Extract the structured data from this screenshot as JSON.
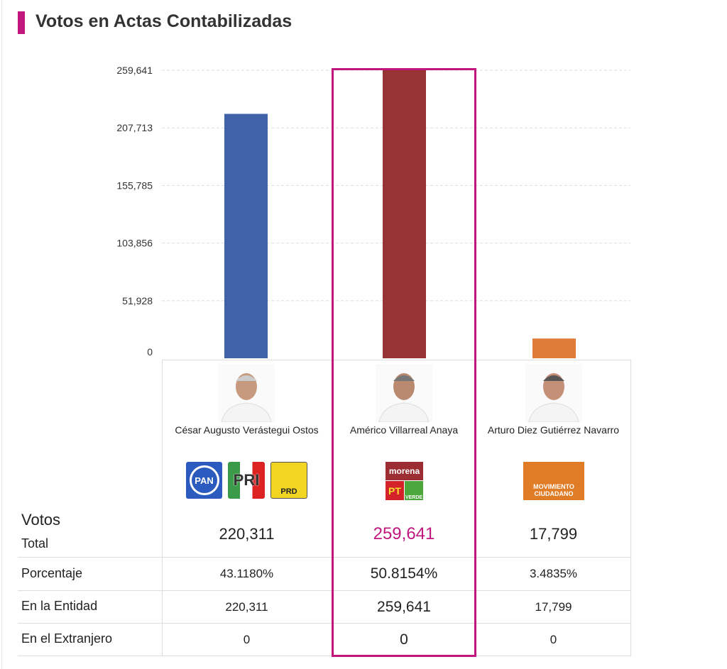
{
  "title": "Votos en Actas Contabilizadas",
  "colors": {
    "accent": "#c0167e",
    "highlight_text": "#c0167e"
  },
  "chart_data": {
    "type": "bar",
    "categories": [
      "César Augusto Verástegui Ostos",
      "Américo Villarreal Anaya",
      "Arturo Diez Gutiérrez Navarro"
    ],
    "values": [
      220311,
      259641,
      17799
    ],
    "bar_colors": [
      "#3f62a9",
      "#973235",
      "#e07b39"
    ],
    "ylim": [
      0,
      259641
    ],
    "yticks": [
      "0",
      "51,928",
      "103,856",
      "155,785",
      "207,713",
      "259,641"
    ],
    "ytick_values": [
      0,
      51928,
      103856,
      155785,
      207713,
      259641
    ],
    "grid": true,
    "highlighted": "Américo Villarreal Anaya"
  },
  "table": {
    "votos_label": "Votos",
    "total_label": "Total",
    "row_labels": [
      "Porcentaje",
      "En la Entidad",
      "En el Extranjero"
    ],
    "candidates": [
      {
        "name": "César Augusto Verástegui Ostos",
        "parties": [
          "PAN",
          "PRI",
          "PRD"
        ],
        "total": "220,311",
        "porcentaje": "43.1180%",
        "entidad": "220,311",
        "extranjero": "0"
      },
      {
        "name": "Américo Villarreal Anaya",
        "parties": [
          "morena",
          "PT",
          "VERDE"
        ],
        "total": "259,641",
        "porcentaje": "50.8154%",
        "entidad": "259,641",
        "extranjero": "0"
      },
      {
        "name": "Arturo Diez Gutiérrez Navarro",
        "parties": [
          "MOVIMIENTO CIUDADANO"
        ],
        "total": "17,799",
        "porcentaje": "3.4835%",
        "entidad": "17,799",
        "extranjero": "0"
      }
    ]
  }
}
